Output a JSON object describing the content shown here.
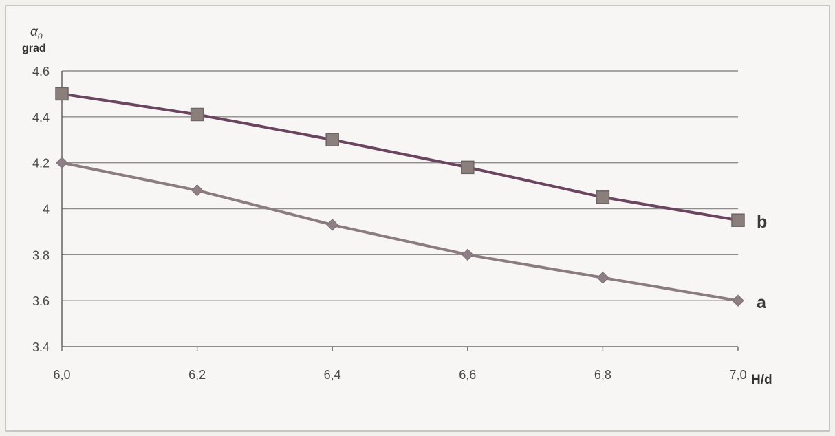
{
  "chart_data": {
    "type": "line",
    "ylabel_main": "α",
    "ylabel_sub": "0",
    "ylabel_unit": "grad",
    "xlabel": "H/d",
    "x": [
      6.0,
      6.2,
      6.4,
      6.6,
      6.8,
      7.0
    ],
    "x_tick_labels": [
      "6,0",
      "6,2",
      "6,4",
      "6,6",
      "6,8",
      "7,0"
    ],
    "y_ticks": [
      3.4,
      3.6,
      3.8,
      4,
      4.2,
      4.4,
      4.6
    ],
    "y_tick_labels": [
      "3.4",
      "3.6",
      "3.8",
      "4",
      "4.2",
      "4.4",
      "4.6"
    ],
    "xlim": [
      6.0,
      7.0
    ],
    "ylim": [
      3.4,
      4.6
    ],
    "grid": "horizontal",
    "series": [
      {
        "name": "b",
        "values": [
          4.5,
          4.41,
          4.3,
          4.18,
          4.05,
          3.95
        ],
        "color": "#6b4560",
        "marker": "square",
        "marker_color": "#8a7f7a"
      },
      {
        "name": "a",
        "values": [
          4.2,
          4.08,
          3.93,
          3.8,
          3.7,
          3.6
        ],
        "color": "#8a7c80",
        "marker": "diamond",
        "marker_color": "#8e7f86"
      }
    ]
  }
}
